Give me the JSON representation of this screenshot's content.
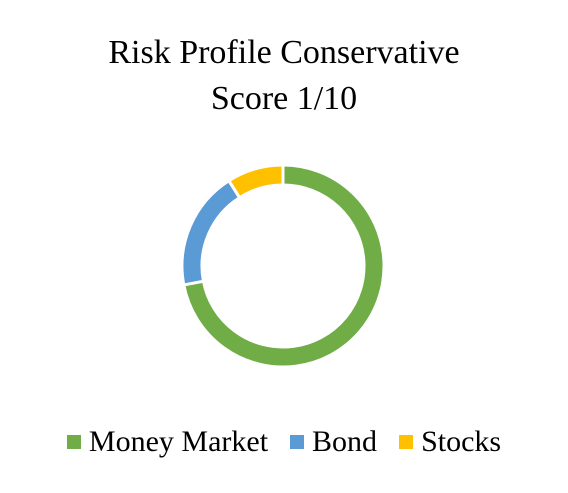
{
  "chart_data": {
    "type": "pie",
    "subtype": "donut",
    "title_lines": [
      "Risk Profile Conservative",
      "Score 1/10"
    ],
    "categories": [
      "Money Market",
      "Bond",
      "Stocks"
    ],
    "values": [
      72,
      19,
      9
    ],
    "colors": [
      "#70ad47",
      "#5b9bd5",
      "#ffc000"
    ],
    "legend_position": "bottom",
    "data_labels": false
  }
}
